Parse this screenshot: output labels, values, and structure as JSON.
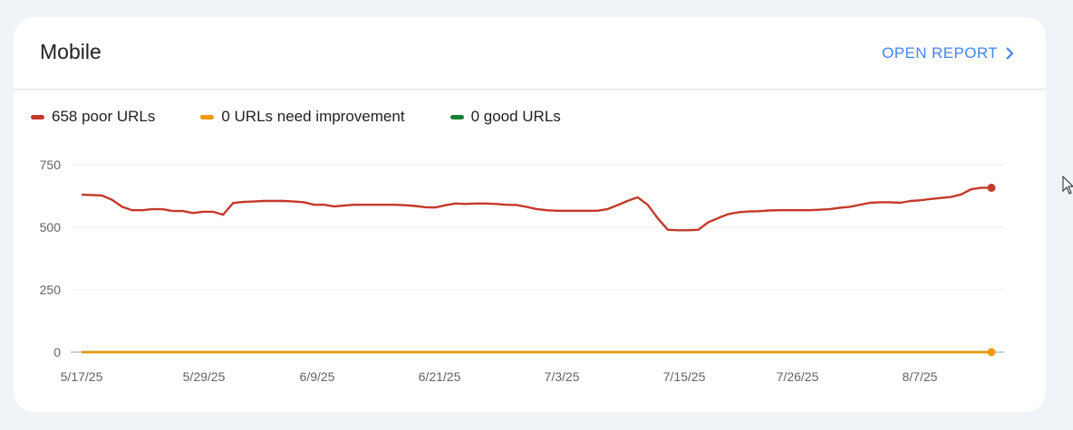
{
  "card": {
    "title": "Mobile",
    "open_report_label": "OPEN REPORT"
  },
  "colors": {
    "poor": "#c5392b",
    "needs_improvement": "#f29900",
    "good": "#188038",
    "link": "#4285f4"
  },
  "legend": [
    {
      "label": "658 poor URLs",
      "color": "#c5392b"
    },
    {
      "label": "0 URLs need improvement",
      "color": "#f29900"
    },
    {
      "label": "0 good URLs",
      "color": "#188038"
    }
  ],
  "chart_data": {
    "type": "line",
    "y_ticks": [
      "750",
      "500",
      "250",
      "0"
    ],
    "ylim": [
      0,
      750
    ],
    "x_ticks": [
      "5/17/25",
      "5/29/25",
      "6/9/25",
      "6/21/25",
      "7/3/25",
      "7/15/25",
      "7/26/25",
      "8/7/25"
    ],
    "x_dates": [
      "2025-05-17",
      "2025-05-18",
      "2025-05-19",
      "2025-05-20",
      "2025-05-21",
      "2025-05-22",
      "2025-05-23",
      "2025-05-24",
      "2025-05-25",
      "2025-05-26",
      "2025-05-27",
      "2025-05-28",
      "2025-05-29",
      "2025-05-30",
      "2025-05-31",
      "2025-06-01",
      "2025-06-02",
      "2025-06-03",
      "2025-06-04",
      "2025-06-05",
      "2025-06-06",
      "2025-06-07",
      "2025-06-08",
      "2025-06-09",
      "2025-06-10",
      "2025-06-11",
      "2025-06-12",
      "2025-06-13",
      "2025-06-14",
      "2025-06-15",
      "2025-06-16",
      "2025-06-17",
      "2025-06-18",
      "2025-06-19",
      "2025-06-20",
      "2025-06-21",
      "2025-06-22",
      "2025-06-23",
      "2025-06-24",
      "2025-06-25",
      "2025-06-26",
      "2025-06-27",
      "2025-06-28",
      "2025-06-29",
      "2025-06-30",
      "2025-07-01",
      "2025-07-02",
      "2025-07-03",
      "2025-07-04",
      "2025-07-05",
      "2025-07-06",
      "2025-07-07",
      "2025-07-08",
      "2025-07-09",
      "2025-07-10",
      "2025-07-11",
      "2025-07-12",
      "2025-07-13",
      "2025-07-14",
      "2025-07-15",
      "2025-07-16",
      "2025-07-17",
      "2025-07-18",
      "2025-07-19",
      "2025-07-20",
      "2025-07-21",
      "2025-07-22",
      "2025-07-23",
      "2025-07-24",
      "2025-07-25",
      "2025-07-26",
      "2025-07-27",
      "2025-07-28",
      "2025-07-29",
      "2025-07-30",
      "2025-07-31",
      "2025-08-01",
      "2025-08-02",
      "2025-08-03",
      "2025-08-04",
      "2025-08-05",
      "2025-08-06",
      "2025-08-07",
      "2025-08-08",
      "2025-08-09",
      "2025-08-10",
      "2025-08-11",
      "2025-08-12",
      "2025-08-13",
      "2025-08-14",
      "2025-08-15"
    ],
    "series": [
      {
        "name": "658 poor URLs",
        "color": "#c5392b",
        "values": [
          630,
          629,
          627,
          610,
          582,
          568,
          568,
          572,
          572,
          565,
          565,
          557,
          562,
          562,
          550,
          597,
          601,
          603,
          605,
          605,
          605,
          603,
          600,
          590,
          590,
          583,
          587,
          590,
          590,
          590,
          590,
          590,
          588,
          585,
          580,
          579,
          588,
          595,
          593,
          595,
          595,
          593,
          590,
          589,
          582,
          573,
          568,
          566,
          566,
          566,
          566,
          566,
          572,
          588,
          605,
          620,
          590,
          535,
          490,
          488,
          488,
          490,
          520,
          537,
          553,
          560,
          563,
          564,
          567,
          568,
          568,
          568,
          568,
          570,
          572,
          578,
          582,
          590,
          598,
          600,
          600,
          598,
          605,
          608,
          613,
          617,
          621,
          631,
          652,
          658,
          658
        ]
      },
      {
        "name": "0 URLs need improvement",
        "color": "#f29900",
        "values": [
          0,
          0,
          0,
          0,
          0,
          0,
          0,
          0,
          0,
          0,
          0,
          0,
          0,
          0,
          0,
          0,
          0,
          0,
          0,
          0,
          0,
          0,
          0,
          0,
          0,
          0,
          0,
          0,
          0,
          0,
          0,
          0,
          0,
          0,
          0,
          0,
          0,
          0,
          0,
          0,
          0,
          0,
          0,
          0,
          0,
          0,
          0,
          0,
          0,
          0,
          0,
          0,
          0,
          0,
          0,
          0,
          0,
          0,
          0,
          0,
          0,
          0,
          0,
          0,
          0,
          0,
          0,
          0,
          0,
          0,
          0,
          0,
          0,
          0,
          0,
          0,
          0,
          0,
          0,
          0,
          0,
          0,
          0,
          0,
          0,
          0,
          0,
          0,
          0,
          0,
          0
        ]
      },
      {
        "name": "0 good URLs",
        "color": "#188038",
        "values": [
          0,
          0,
          0,
          0,
          0,
          0,
          0,
          0,
          0,
          0,
          0,
          0,
          0,
          0,
          0,
          0,
          0,
          0,
          0,
          0,
          0,
          0,
          0,
          0,
          0,
          0,
          0,
          0,
          0,
          0,
          0,
          0,
          0,
          0,
          0,
          0,
          0,
          0,
          0,
          0,
          0,
          0,
          0,
          0,
          0,
          0,
          0,
          0,
          0,
          0,
          0,
          0,
          0,
          0,
          0,
          0,
          0,
          0,
          0,
          0,
          0,
          0,
          0,
          0,
          0,
          0,
          0,
          0,
          0,
          0,
          0,
          0,
          0,
          0,
          0,
          0,
          0,
          0,
          0,
          0,
          0,
          0,
          0,
          0,
          0,
          0,
          0,
          0,
          0,
          0,
          0
        ]
      }
    ]
  }
}
